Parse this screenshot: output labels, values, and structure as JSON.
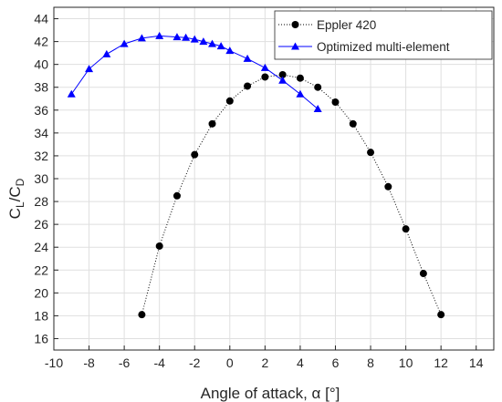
{
  "chart_data": {
    "type": "line",
    "title": "",
    "xlabel": "Angle of attack, α [°]",
    "ylabel_main": "C",
    "ylabel_sub1": "L",
    "ylabel_slash": "/C",
    "ylabel_sub2": "D",
    "xlim": [
      -10,
      15
    ],
    "ylim": [
      15,
      45
    ],
    "xticks": [
      -10,
      -8,
      -6,
      -4,
      -2,
      0,
      2,
      4,
      6,
      8,
      10,
      12,
      14
    ],
    "yticks": [
      16,
      18,
      20,
      22,
      24,
      26,
      28,
      30,
      32,
      34,
      36,
      38,
      40,
      42,
      44
    ],
    "grid": true,
    "legend_position": "top-right",
    "series": [
      {
        "name": "Eppler 420",
        "color": "#000000",
        "line_style": "dotted",
        "marker": "circle",
        "x": [
          -5,
          -4,
          -3,
          -2,
          -1,
          0,
          1,
          2,
          3,
          4,
          5,
          6,
          7,
          8,
          9,
          10,
          11,
          12
        ],
        "y": [
          18.1,
          24.1,
          28.5,
          32.1,
          34.8,
          36.8,
          38.1,
          38.9,
          39.1,
          38.8,
          38.0,
          36.7,
          34.8,
          32.3,
          29.3,
          25.6,
          21.7,
          18.1
        ]
      },
      {
        "name": "Optimized multi-element",
        "color": "#0000ff",
        "line_style": "solid",
        "marker": "triangle",
        "x": [
          -9,
          -8,
          -7,
          -6,
          -5,
          -4,
          -3,
          -2.5,
          -2,
          -1.5,
          -1,
          -0.5,
          0,
          1,
          2,
          3,
          4,
          5
        ],
        "y": [
          37.4,
          39.6,
          40.9,
          41.8,
          42.3,
          42.5,
          42.4,
          42.35,
          42.2,
          42.0,
          41.8,
          41.6,
          41.2,
          40.5,
          39.7,
          38.6,
          37.4,
          36.1
        ]
      }
    ]
  }
}
